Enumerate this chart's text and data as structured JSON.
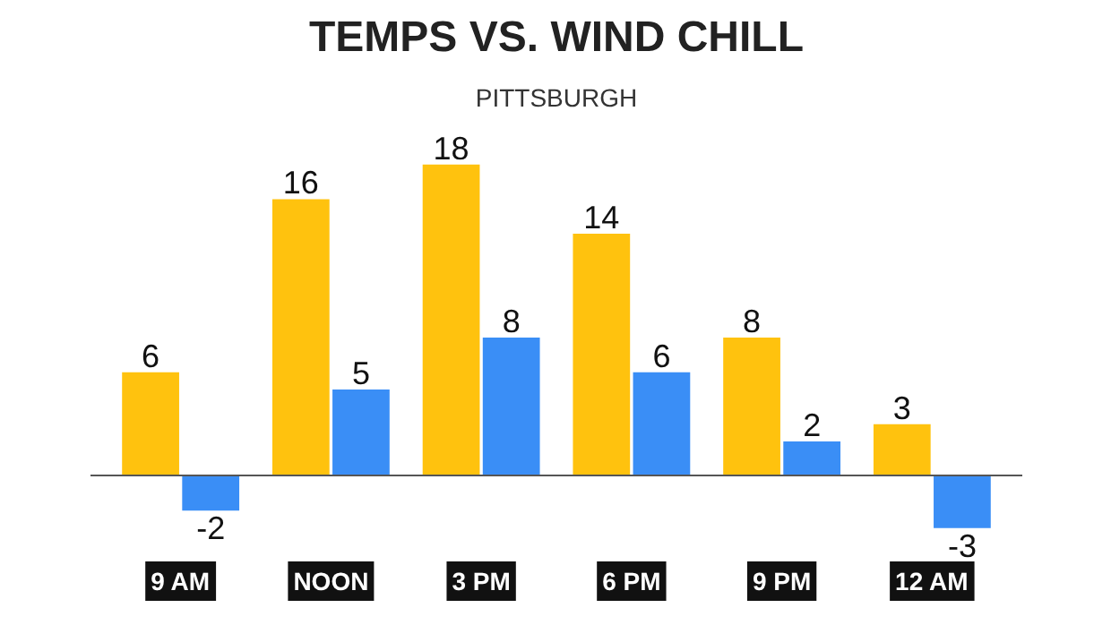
{
  "chart_data": {
    "type": "bar",
    "title": "TEMPS VS. WIND CHILL",
    "subtitle": "PITTSBURGH",
    "categories": [
      "9 AM",
      "NOON",
      "3 PM",
      "6 PM",
      "9 PM",
      "12 AM"
    ],
    "tick_labels": false,
    "data_labels": true,
    "series": [
      {
        "color": "#ffc20e",
        "values": [
          6,
          16,
          18,
          14,
          8,
          3
        ]
      },
      {
        "color": "#3a8ef6",
        "values": [
          -2,
          5,
          8,
          6,
          2,
          -3
        ]
      }
    ]
  }
}
